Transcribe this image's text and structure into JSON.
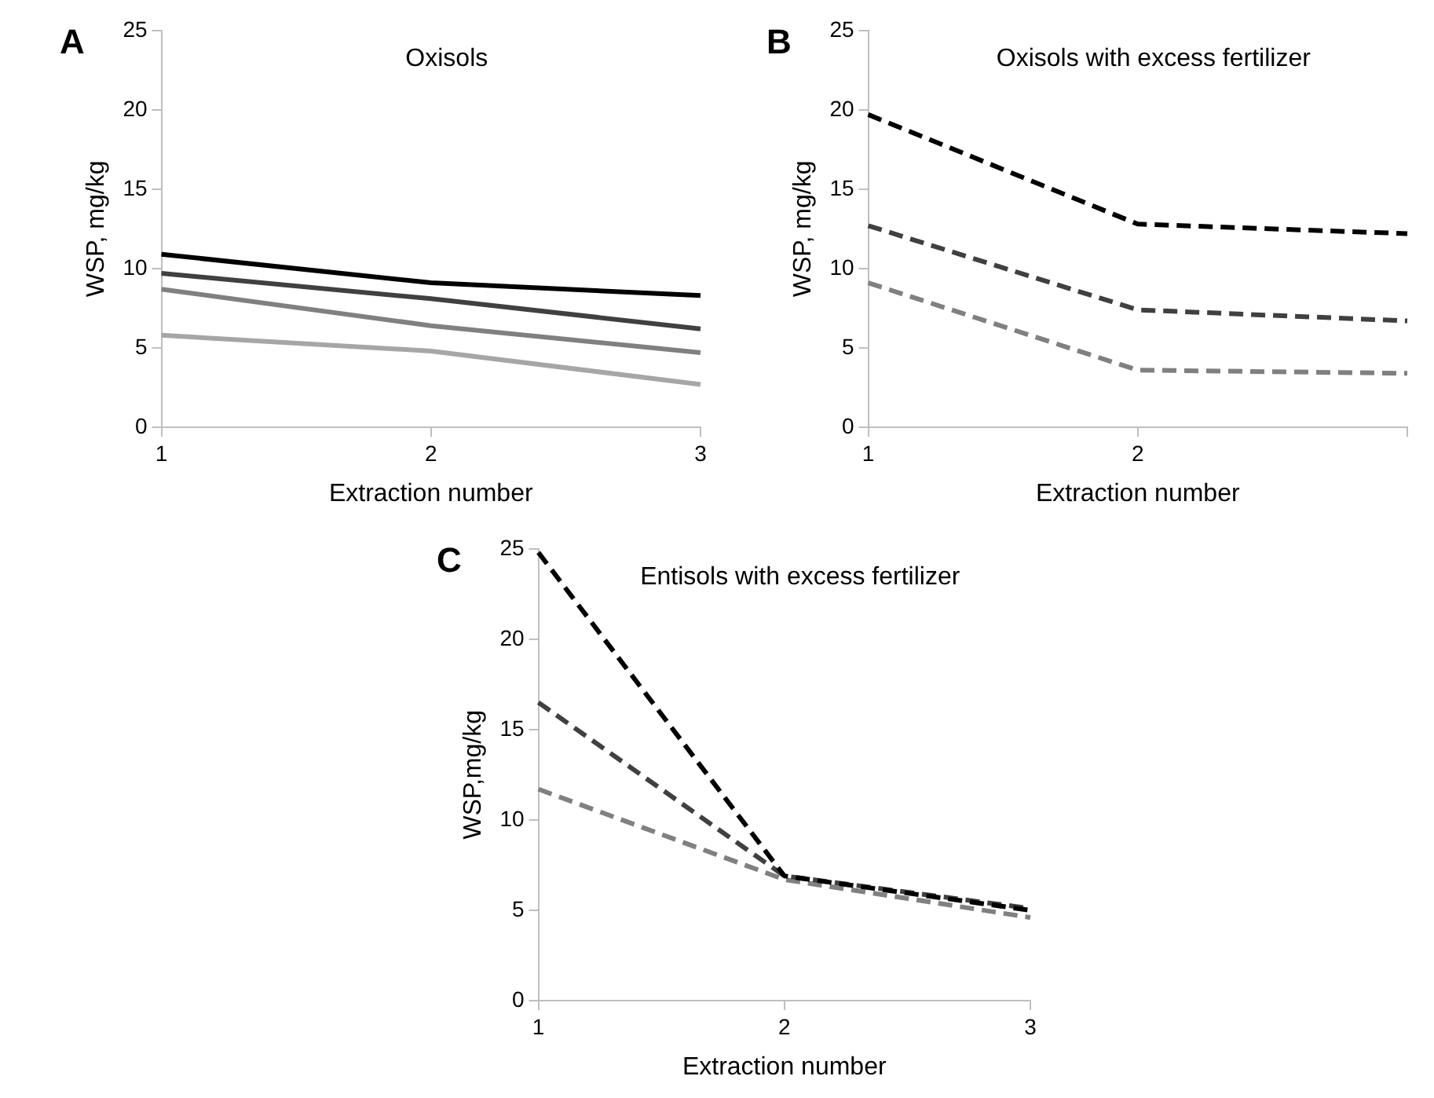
{
  "chart_data": [
    {
      "type": "line",
      "title": "Oxisols",
      "xlabel": "Extraction number",
      "ylabel": "WSP, mg/kg",
      "annotations": [
        "A"
      ],
      "categories": [
        "1",
        "2",
        "3"
      ],
      "ylim": [
        0,
        25
      ],
      "yticks": [
        0,
        5,
        10,
        15,
        20,
        25
      ],
      "grid": false,
      "marker": "none",
      "line_style": "solid",
      "series": [
        {
          "color": "#000000",
          "values": [
            10.9,
            9.1,
            8.3
          ]
        },
        {
          "color": "#404040",
          "values": [
            9.7,
            8.1,
            6.2
          ]
        },
        {
          "color": "#808080",
          "values": [
            8.7,
            6.4,
            4.7
          ]
        },
        {
          "color": "#a6a6a6",
          "values": [
            5.8,
            4.8,
            2.7
          ]
        }
      ]
    },
    {
      "type": "line",
      "title": "Oxisols with excess fertilizer",
      "xlabel": "Extraction number",
      "ylabel": "WSP, mg/kg",
      "annotations": [
        "B"
      ],
      "categories": [
        "1",
        "2",
        null
      ],
      "ylim": [
        0,
        25
      ],
      "yticks": [
        0,
        5,
        10,
        15,
        20,
        25
      ],
      "grid": false,
      "marker": "none",
      "line_style": "dashed",
      "series": [
        {
          "color": "#000000",
          "values": [
            19.7,
            12.8,
            12.2
          ]
        },
        {
          "color": "#404040",
          "values": [
            12.7,
            7.4,
            6.7
          ]
        },
        {
          "color": "#808080",
          "values": [
            9.1,
            3.6,
            3.4
          ]
        }
      ]
    },
    {
      "type": "line",
      "title": "Entisols with excess fertilizer",
      "xlabel": "Extraction number",
      "ylabel": "WSP,mg/kg",
      "annotations": [
        "C"
      ],
      "categories": [
        "1",
        "2",
        "3"
      ],
      "ylim": [
        0,
        25
      ],
      "yticks": [
        0,
        5,
        10,
        15,
        20,
        25
      ],
      "grid": false,
      "marker": "none",
      "line_style": "dashed",
      "series": [
        {
          "color": "#000000",
          "values": [
            24.8,
            6.9,
            5.0
          ]
        },
        {
          "color": "#404040",
          "values": [
            16.5,
            6.9,
            5.1
          ]
        },
        {
          "color": "#808080",
          "values": [
            11.7,
            6.7,
            4.6
          ]
        }
      ]
    }
  ]
}
